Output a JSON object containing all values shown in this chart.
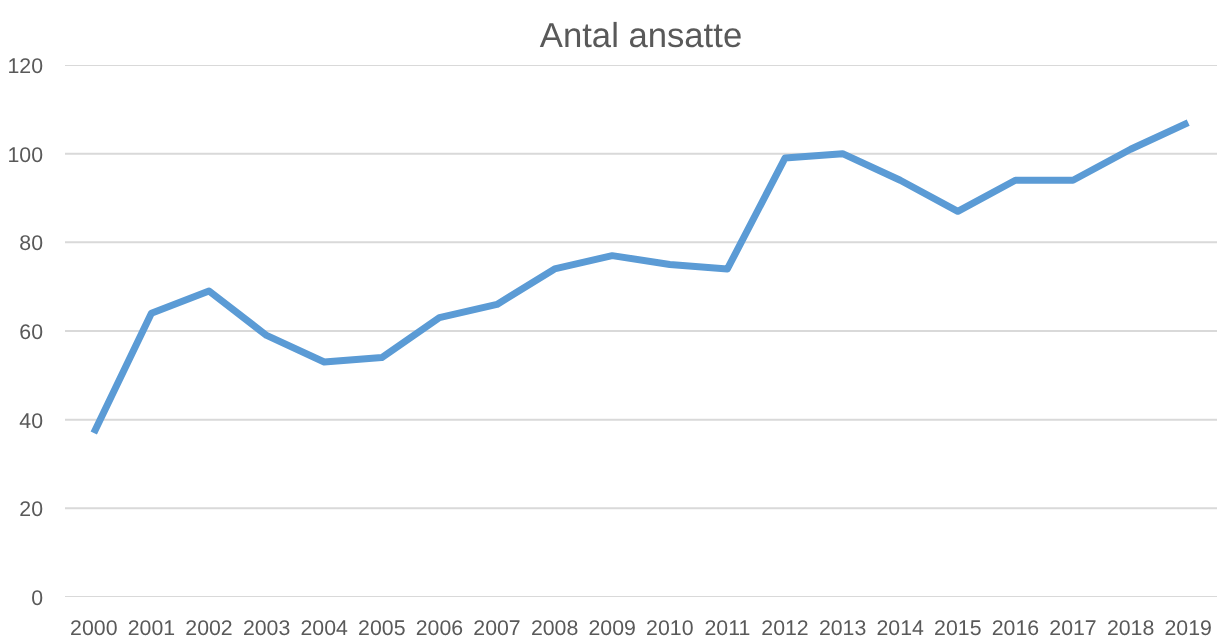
{
  "chart_data": {
    "type": "line",
    "title": "Antal ansatte",
    "categories": [
      "2000",
      "2001",
      "2002",
      "2003",
      "2004",
      "2005",
      "2006",
      "2007",
      "2008",
      "2009",
      "2010",
      "2011",
      "2012",
      "2013",
      "2014",
      "2015",
      "2016",
      "2017",
      "2018",
      "2019"
    ],
    "series": [
      {
        "color": "#5b9bd5",
        "values": [
          37,
          64,
          69,
          59,
          53,
          54,
          63,
          66,
          74,
          77,
          75,
          74,
          99,
          100,
          94,
          87,
          94,
          94,
          101,
          107
        ]
      }
    ],
    "ylim": [
      0,
      120
    ],
    "yticks": [
      0,
      20,
      40,
      60,
      80,
      100,
      120
    ],
    "grid": "y",
    "marker": "none",
    "line_style": "solid"
  }
}
